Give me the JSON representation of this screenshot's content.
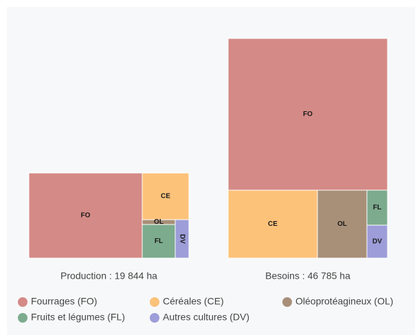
{
  "chart_data": {
    "type": "treemap",
    "categories": [
      "Fourrages (FO)",
      "Céréales (CE)",
      "Oléoprotéagineux (OL)",
      "Fruits et légumes (FL)",
      "Autres cultures (DV)"
    ],
    "labels": [
      "FO",
      "CE",
      "OL",
      "FL",
      "DV"
    ],
    "colors": [
      "#d48a86",
      "#fdc27a",
      "#a88f78",
      "#7dab8e",
      "#9d9dd9"
    ],
    "series": [
      {
        "name": "Production : 19 844 ha",
        "values": [
          14053,
          3176,
          231,
          1615,
          769
        ]
      },
      {
        "name": "Besoins : 46 785 ha",
        "values": [
          32311,
          8111,
          4492,
          964,
          907
        ]
      }
    ]
  }
}
